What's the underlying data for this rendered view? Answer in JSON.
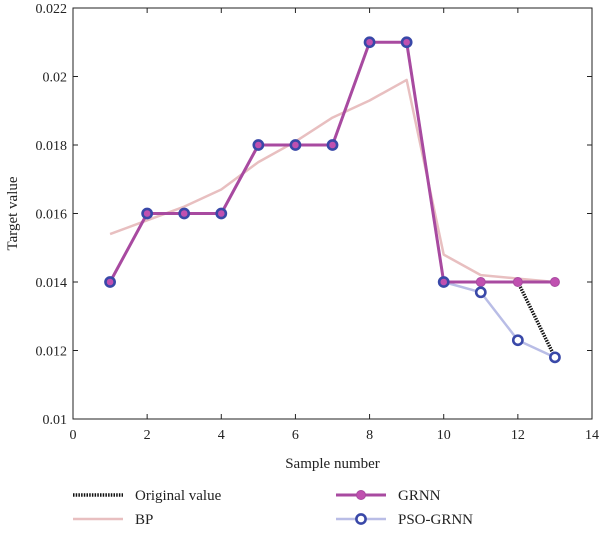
{
  "chart_data": {
    "type": "line",
    "xlabel": "Sample number",
    "ylabel": "Target value",
    "xlim": [
      0,
      14
    ],
    "ylim": [
      0.01,
      0.022
    ],
    "xticks": [
      "0",
      "2",
      "4",
      "6",
      "8",
      "10",
      "12",
      "14"
    ],
    "yticks": [
      "0.01",
      "0.012",
      "0.014",
      "0.016",
      "0.018",
      "0.02",
      "0.022"
    ],
    "grid": false,
    "legend_position": "bottom",
    "series": [
      {
        "name": "Original value",
        "color": "#111111",
        "style": "dotted",
        "marker": "none",
        "x": [
          1,
          2,
          3,
          4,
          5,
          6,
          7,
          8,
          9,
          10,
          11,
          12,
          13
        ],
        "y": [
          0.014,
          0.016,
          0.016,
          0.016,
          0.018,
          0.018,
          0.018,
          0.021,
          0.021,
          0.014,
          0.014,
          0.014,
          0.0118
        ]
      },
      {
        "name": "BP",
        "color": "#e8bfc0",
        "style": "solid",
        "marker": "none",
        "x": [
          1,
          2,
          3,
          4,
          5,
          6,
          7,
          8,
          9,
          10,
          11,
          12,
          13
        ],
        "y": [
          0.0154,
          0.0158,
          0.0162,
          0.0167,
          0.0175,
          0.0181,
          0.0188,
          0.0193,
          0.0199,
          0.0148,
          0.0142,
          0.0141,
          0.014
        ]
      },
      {
        "name": "GRNN",
        "color": "#a84aa0",
        "style": "solid",
        "marker": "filled-circle",
        "x": [
          1,
          2,
          3,
          4,
          5,
          6,
          7,
          8,
          9,
          10,
          11,
          12,
          13
        ],
        "y": [
          0.014,
          0.016,
          0.016,
          0.016,
          0.018,
          0.018,
          0.018,
          0.021,
          0.021,
          0.014,
          0.014,
          0.014,
          0.014
        ]
      },
      {
        "name": "PSO-GRNN",
        "color": "#b9bde6",
        "marker_color": "#3948a8",
        "style": "solid",
        "marker": "open-circle",
        "x": [
          1,
          2,
          3,
          4,
          5,
          6,
          7,
          8,
          9,
          10,
          11,
          12,
          13
        ],
        "y": [
          0.014,
          0.016,
          0.016,
          0.016,
          0.018,
          0.018,
          0.018,
          0.021,
          0.021,
          0.014,
          0.0137,
          0.0123,
          0.0118
        ]
      }
    ],
    "legend": [
      {
        "label": "Original value",
        "series": 0
      },
      {
        "label": "BP",
        "series": 1
      },
      {
        "label": "GRNN",
        "series": 2
      },
      {
        "label": "PSO-GRNN",
        "series": 3
      }
    ]
  }
}
